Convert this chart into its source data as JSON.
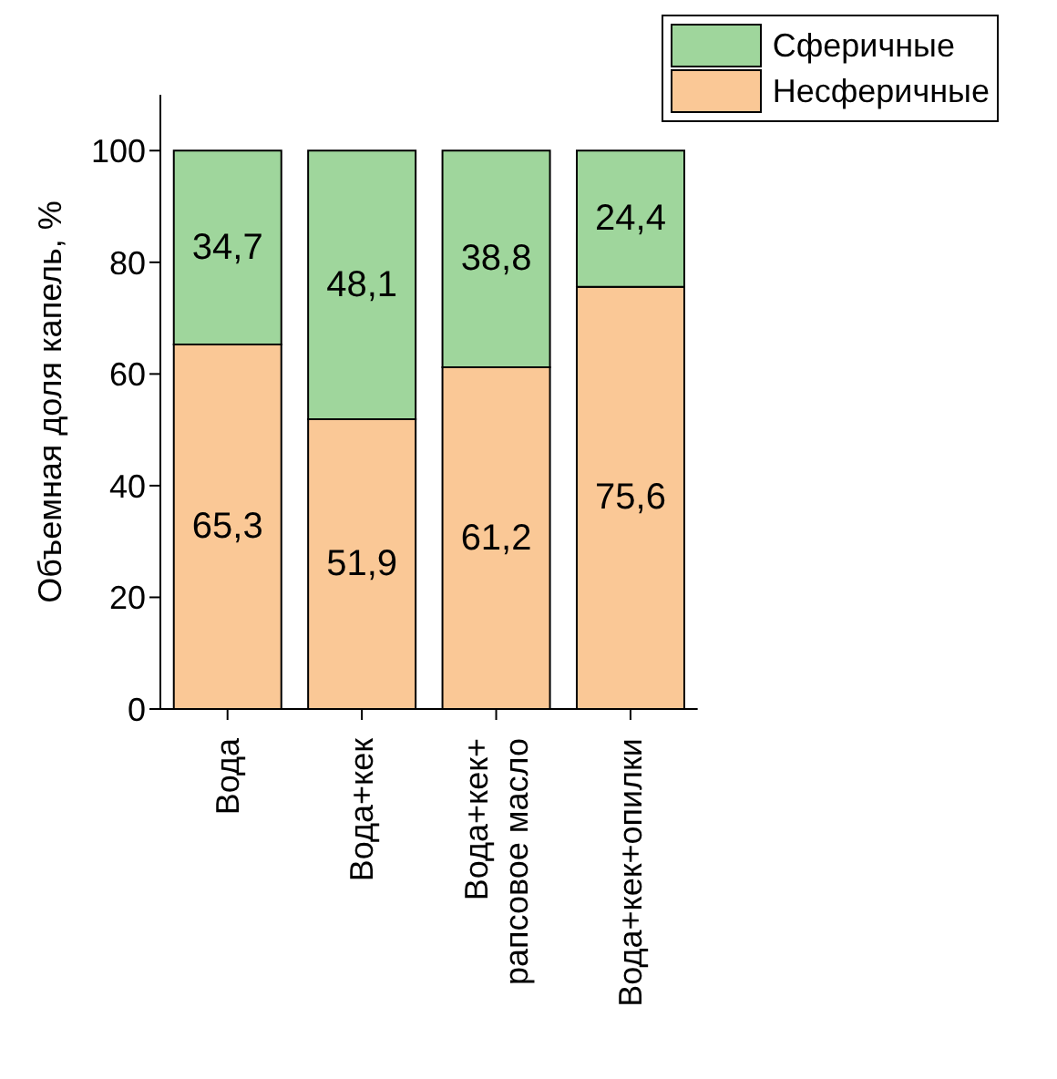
{
  "chart_data": {
    "type": "bar",
    "stacked": true,
    "ylabel": "Объемная доля капель, %",
    "categories": [
      "Вода",
      "Вода+кек",
      "Вода+кек+\nрапсовое масло",
      "Вода+кек+опилки"
    ],
    "series": [
      {
        "name": "Несферичные",
        "color": "#fac896",
        "values": [
          65.3,
          51.9,
          61.2,
          75.6
        ],
        "value_labels": [
          "65,3",
          "51,9",
          "61,2",
          "75,6"
        ]
      },
      {
        "name": "Сферичные",
        "color": "#9fd69c",
        "values": [
          34.7,
          48.1,
          38.8,
          24.4
        ],
        "value_labels": [
          "34,7",
          "48,1",
          "38,8",
          "24,4"
        ]
      }
    ],
    "ylim": [
      0,
      110
    ],
    "yticks": [
      0,
      20,
      40,
      60,
      80,
      100
    ],
    "grid": false,
    "legend": "top right"
  }
}
